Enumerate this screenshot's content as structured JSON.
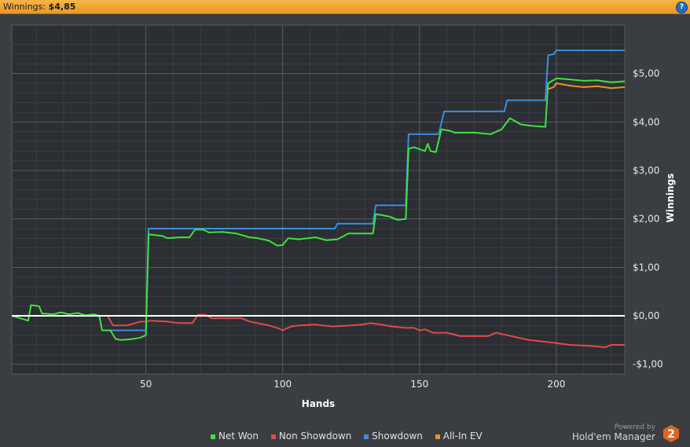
{
  "header": {
    "winnings_label": "Winnings:",
    "winnings_value": "$4,85",
    "help_icon": "?"
  },
  "legend": [
    {
      "label": "Net Won",
      "color": "#3fe23f"
    },
    {
      "label": "Non Showdown",
      "color": "#e04a4a"
    },
    {
      "label": "Showdown",
      "color": "#3a8fe0"
    },
    {
      "label": "All-In EV",
      "color": "#f08c2e"
    }
  ],
  "branding": {
    "powered_by": "Powered by",
    "name": "Hold'em Manager",
    "badge": "2"
  },
  "chart_data": {
    "type": "line",
    "xlabel": "Hands",
    "ylabel": "Winnings",
    "xlim": [
      1,
      225
    ],
    "ylim": [
      -1.2,
      6.0
    ],
    "x_ticks": [
      50,
      100,
      150,
      200
    ],
    "y_ticks": [
      {
        "value": -1,
        "label": "-$1,00"
      },
      {
        "value": 0,
        "label": "$0,00"
      },
      {
        "value": 1,
        "label": "$1,00"
      },
      {
        "value": 2,
        "label": "$2,00"
      },
      {
        "value": 3,
        "label": "$3,00"
      },
      {
        "value": 4,
        "label": "$4,00"
      },
      {
        "value": 5,
        "label": "$5,00"
      }
    ],
    "grid": true,
    "series": [
      {
        "name": "Showdown",
        "color": "#3a8fe0",
        "points": [
          [
            1,
            0
          ],
          [
            33,
            0
          ],
          [
            34,
            -0.3
          ],
          [
            50,
            -0.3
          ],
          [
            51,
            1.8
          ],
          [
            119,
            1.8
          ],
          [
            120,
            1.9
          ],
          [
            133,
            1.9
          ],
          [
            134,
            2.28
          ],
          [
            145,
            2.28
          ],
          [
            146,
            3.75
          ],
          [
            157,
            3.75
          ],
          [
            159,
            4.22
          ],
          [
            181,
            4.22
          ],
          [
            182,
            4.45
          ],
          [
            196,
            4.45
          ],
          [
            197,
            5.38
          ],
          [
            199,
            5.4
          ],
          [
            200,
            5.48
          ],
          [
            225,
            5.48
          ]
        ]
      },
      {
        "name": "Non Showdown",
        "color": "#e04a4a",
        "points": [
          [
            1,
            0
          ],
          [
            36,
            0
          ],
          [
            38,
            -0.2
          ],
          [
            43,
            -0.2
          ],
          [
            48,
            -0.12
          ],
          [
            50,
            -0.12
          ],
          [
            52,
            -0.1
          ],
          [
            58,
            -0.12
          ],
          [
            62,
            -0.15
          ],
          [
            67,
            -0.15
          ],
          [
            69,
            0.02
          ],
          [
            72,
            0.02
          ],
          [
            74,
            -0.05
          ],
          [
            85,
            -0.05
          ],
          [
            88,
            -0.12
          ],
          [
            95,
            -0.2
          ],
          [
            98,
            -0.25
          ],
          [
            100,
            -0.3
          ],
          [
            103,
            -0.22
          ],
          [
            106,
            -0.2
          ],
          [
            112,
            -0.18
          ],
          [
            118,
            -0.22
          ],
          [
            125,
            -0.2
          ],
          [
            129,
            -0.18
          ],
          [
            132,
            -0.15
          ],
          [
            136,
            -0.18
          ],
          [
            140,
            -0.22
          ],
          [
            145,
            -0.25
          ],
          [
            148,
            -0.25
          ],
          [
            150,
            -0.3
          ],
          [
            152,
            -0.28
          ],
          [
            155,
            -0.35
          ],
          [
            160,
            -0.35
          ],
          [
            165,
            -0.42
          ],
          [
            175,
            -0.42
          ],
          [
            178,
            -0.35
          ],
          [
            182,
            -0.4
          ],
          [
            186,
            -0.45
          ],
          [
            190,
            -0.5
          ],
          [
            198,
            -0.55
          ],
          [
            205,
            -0.6
          ],
          [
            212,
            -0.62
          ],
          [
            218,
            -0.65
          ],
          [
            220,
            -0.6
          ],
          [
            225,
            -0.6
          ]
        ]
      },
      {
        "name": "All-In EV",
        "color": "#f08c2e",
        "points": [
          [
            197,
            4.68
          ],
          [
            199,
            4.72
          ],
          [
            200,
            4.8
          ],
          [
            205,
            4.75
          ],
          [
            210,
            4.72
          ],
          [
            215,
            4.74
          ],
          [
            220,
            4.7
          ],
          [
            225,
            4.72
          ]
        ]
      },
      {
        "name": "Net Won",
        "color": "#3fe23f",
        "points": [
          [
            1,
            0
          ],
          [
            4,
            -0.05
          ],
          [
            7,
            -0.1
          ],
          [
            8,
            0.22
          ],
          [
            11,
            0.2
          ],
          [
            12,
            0.05
          ],
          [
            16,
            0.03
          ],
          [
            19,
            0.07
          ],
          [
            22,
            0.03
          ],
          [
            25,
            0.06
          ],
          [
            28,
            0.01
          ],
          [
            31,
            0.03
          ],
          [
            33,
            0
          ],
          [
            34,
            -0.3
          ],
          [
            37,
            -0.3
          ],
          [
            39,
            -0.48
          ],
          [
            41,
            -0.5
          ],
          [
            45,
            -0.48
          ],
          [
            48,
            -0.45
          ],
          [
            50,
            -0.4
          ],
          [
            51,
            1.68
          ],
          [
            56,
            1.65
          ],
          [
            58,
            1.6
          ],
          [
            62,
            1.62
          ],
          [
            66,
            1.62
          ],
          [
            68,
            1.78
          ],
          [
            71,
            1.78
          ],
          [
            73,
            1.72
          ],
          [
            78,
            1.73
          ],
          [
            83,
            1.7
          ],
          [
            88,
            1.62
          ],
          [
            91,
            1.6
          ],
          [
            95,
            1.55
          ],
          [
            98,
            1.45
          ],
          [
            100,
            1.46
          ],
          [
            102,
            1.6
          ],
          [
            106,
            1.58
          ],
          [
            112,
            1.62
          ],
          [
            116,
            1.56
          ],
          [
            120,
            1.58
          ],
          [
            124,
            1.7
          ],
          [
            128,
            1.7
          ],
          [
            133,
            1.7
          ],
          [
            134,
            2.1
          ],
          [
            139,
            2.05
          ],
          [
            142,
            1.98
          ],
          [
            145,
            2.0
          ],
          [
            146,
            3.45
          ],
          [
            148,
            3.48
          ],
          [
            152,
            3.4
          ],
          [
            153,
            3.55
          ],
          [
            154,
            3.4
          ],
          [
            156,
            3.38
          ],
          [
            158,
            3.85
          ],
          [
            161,
            3.82
          ],
          [
            163,
            3.78
          ],
          [
            170,
            3.78
          ],
          [
            176,
            3.75
          ],
          [
            180,
            3.85
          ],
          [
            183,
            4.08
          ],
          [
            187,
            3.95
          ],
          [
            191,
            3.92
          ],
          [
            196,
            3.9
          ],
          [
            197,
            4.8
          ],
          [
            200,
            4.9
          ],
          [
            205,
            4.88
          ],
          [
            210,
            4.85
          ],
          [
            215,
            4.86
          ],
          [
            220,
            4.82
          ],
          [
            225,
            4.84
          ]
        ]
      }
    ]
  }
}
